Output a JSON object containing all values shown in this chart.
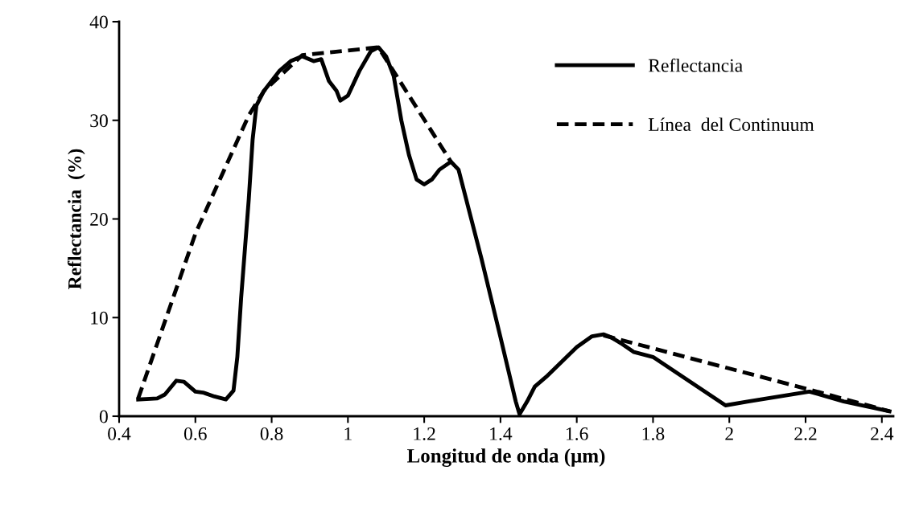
{
  "chart_data": {
    "type": "line",
    "xlabel": "Longitud de onda (μm)",
    "ylabel": "Reflectancia  (%)",
    "xlim": [
      0.4,
      2.43
    ],
    "xticks": [
      0.4,
      0.6,
      0.8,
      1,
      1.2,
      1.4,
      1.6,
      1.8,
      2,
      2.2,
      2.4
    ],
    "ylim": [
      0,
      40
    ],
    "yticks": [
      0,
      10,
      20,
      30,
      40
    ],
    "grid": false,
    "legend": "top right",
    "marker": "none",
    "series": [
      {
        "name": "Reflectancia",
        "color": "#000000",
        "line_style": "solid",
        "x": [
          0.45,
          0.5,
          0.52,
          0.55,
          0.57,
          0.6,
          0.62,
          0.65,
          0.68,
          0.7,
          0.71,
          0.72,
          0.74,
          0.75,
          0.76,
          0.78,
          0.8,
          0.82,
          0.85,
          0.88,
          0.91,
          0.93,
          0.95,
          0.97,
          0.98,
          1.0,
          1.03,
          1.06,
          1.08,
          1.1,
          1.12,
          1.14,
          1.16,
          1.18,
          1.2,
          1.22,
          1.24,
          1.27,
          1.29,
          1.31,
          1.35,
          1.4,
          1.44,
          1.45,
          1.47,
          1.49,
          1.52,
          1.56,
          1.6,
          1.64,
          1.67,
          1.69,
          1.72,
          1.75,
          1.78,
          1.8,
          1.99,
          2.05,
          2.21,
          2.3,
          2.42
        ],
        "values": [
          1.7,
          1.8,
          2.2,
          3.6,
          3.5,
          2.5,
          2.4,
          2.0,
          1.7,
          2.6,
          6,
          12,
          22,
          28,
          31.5,
          33,
          34,
          35,
          36,
          36.5,
          36,
          36.2,
          34,
          33,
          32,
          32.5,
          35,
          37,
          37.4,
          36.5,
          34.5,
          30,
          26.5,
          24,
          23.5,
          24,
          25,
          25.8,
          25,
          22,
          16,
          8,
          1.5,
          0.2,
          1.5,
          3,
          4,
          5.5,
          7,
          8.1,
          8.3,
          8,
          7.3,
          6.5,
          6.2,
          6,
          1.1,
          1.5,
          2.5,
          1.5,
          0.5
        ]
      },
      {
        "name": "Línea  del Continuum",
        "color": "#000000",
        "line_style": "dashed",
        "x": [
          0.45,
          0.6,
          0.74,
          0.78,
          0.88,
          1.08,
          1.27,
          1.47,
          1.67,
          2.21,
          2.42
        ],
        "values": [
          1.8,
          18.5,
          30.5,
          33,
          36.6,
          37.4,
          25.8,
          null,
          8.2,
          2.7,
          0.5
        ]
      }
    ]
  }
}
